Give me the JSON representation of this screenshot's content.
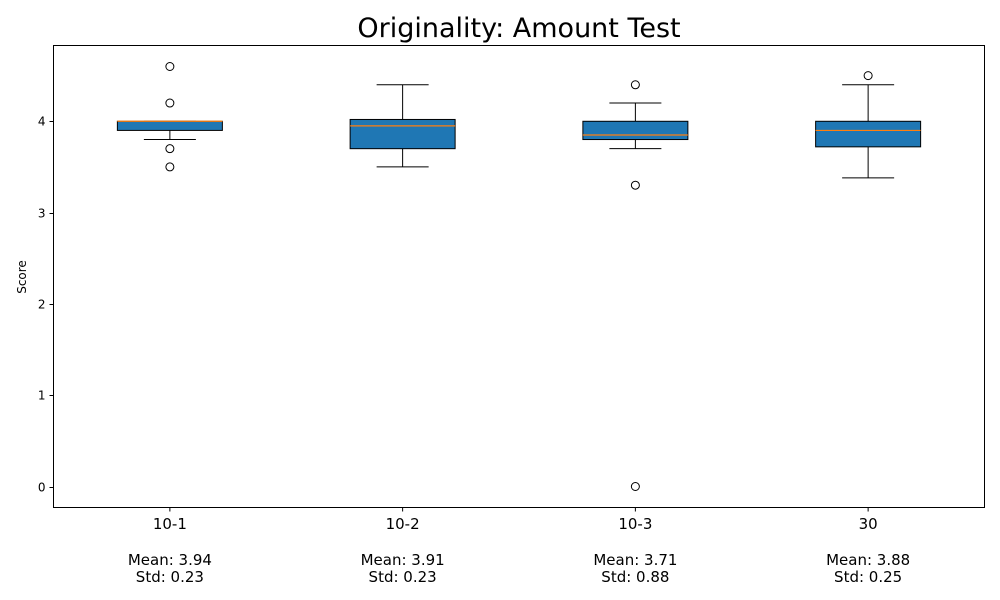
{
  "chart_data": {
    "type": "box",
    "title": "Originality: Amount Test",
    "xlabel": "",
    "ylabel": "Score",
    "ylim": [
      -0.23,
      4.83
    ],
    "yticks": [
      0,
      1,
      2,
      3,
      4
    ],
    "grid": false,
    "box_color": "#1f77b4",
    "median_color": "#ff7f0e",
    "categories": [
      {
        "label": "10-1",
        "whisker_low": 3.8,
        "q1": 3.9,
        "median": 4.0,
        "q3": 4.0,
        "whisker_high": 4.0,
        "outliers": [
          4.6,
          4.2,
          3.7,
          3.5
        ],
        "mean_text": "Mean: 3.94",
        "std_text": "Std: 0.23"
      },
      {
        "label": "10-2",
        "whisker_low": 3.5,
        "q1": 3.7,
        "median": 3.95,
        "q3": 4.02,
        "whisker_high": 4.4,
        "outliers": [],
        "mean_text": "Mean: 3.91",
        "std_text": "Std: 0.23"
      },
      {
        "label": "10-3",
        "whisker_low": 3.7,
        "q1": 3.8,
        "median": 3.85,
        "q3": 4.0,
        "whisker_high": 4.2,
        "outliers": [
          4.4,
          3.3,
          0.0
        ],
        "mean_text": "Mean: 3.71",
        "std_text": "Std: 0.88"
      },
      {
        "label": "30",
        "whisker_low": 3.38,
        "q1": 3.72,
        "median": 3.9,
        "q3": 4.0,
        "whisker_high": 4.4,
        "outliers": [
          4.5
        ],
        "mean_text": "Mean: 3.88",
        "std_text": "Std: 0.25"
      }
    ]
  }
}
